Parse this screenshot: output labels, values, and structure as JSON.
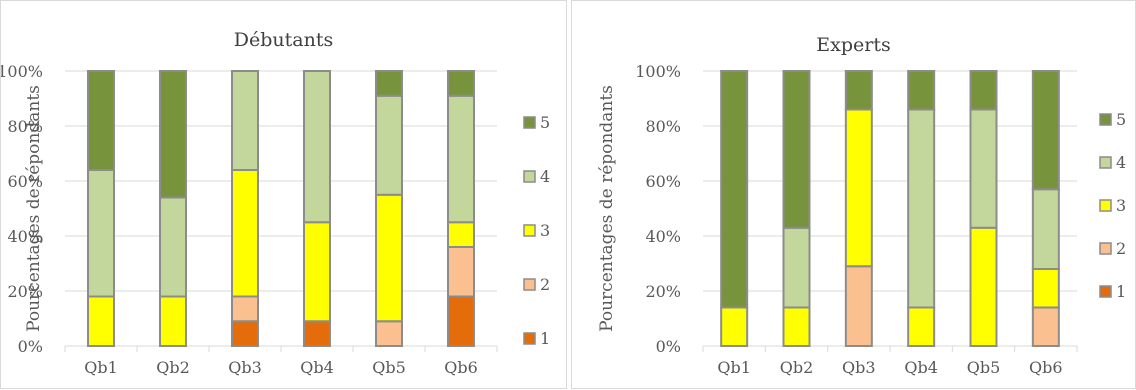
{
  "chart_data": [
    {
      "type": "bar",
      "stacked": true,
      "title": "Débutants",
      "ylabel": "Pourcentages de répondants",
      "xlabel": "",
      "ylim": [
        0,
        100
      ],
      "yticks": [
        "0%",
        "20%",
        "40%",
        "60%",
        "80%",
        "100%"
      ],
      "grid": true,
      "legend_position": "right",
      "categories": [
        "Qb1",
        "Qb2",
        "Qb3",
        "Qb4",
        "Qb5",
        "Qb6"
      ],
      "series": [
        {
          "name": "1",
          "color": "#e46c0a",
          "values": [
            0,
            0,
            9,
            9,
            0,
            18
          ]
        },
        {
          "name": "2",
          "color": "#fac090",
          "values": [
            0,
            0,
            9,
            0,
            9,
            18
          ]
        },
        {
          "name": "3",
          "color": "#ffff00",
          "values": [
            18,
            18,
            46,
            36,
            46,
            9
          ]
        },
        {
          "name": "4",
          "color": "#c3d69b",
          "values": [
            46,
            36,
            36,
            55,
            36,
            46
          ]
        },
        {
          "name": "5",
          "color": "#77933c",
          "values": [
            36,
            46,
            0,
            0,
            9,
            9
          ]
        }
      ]
    },
    {
      "type": "bar",
      "stacked": true,
      "title": "Experts",
      "ylabel": "Pourcentages de répondants",
      "xlabel": "",
      "ylim": [
        0,
        100
      ],
      "yticks": [
        "0%",
        "20%",
        "40%",
        "60%",
        "80%",
        "100%"
      ],
      "grid": true,
      "legend_position": "right",
      "categories": [
        "Qb1",
        "Qb2",
        "Qb3",
        "Qb4",
        "Qb5",
        "Qb6"
      ],
      "series": [
        {
          "name": "1",
          "color": "#e46c0a",
          "values": [
            0,
            0,
            0,
            0,
            0,
            0
          ]
        },
        {
          "name": "2",
          "color": "#fac090",
          "values": [
            0,
            0,
            29,
            0,
            0,
            14
          ]
        },
        {
          "name": "3",
          "color": "#ffff00",
          "values": [
            14,
            14,
            57,
            14,
            43,
            14
          ]
        },
        {
          "name": "4",
          "color": "#c3d69b",
          "values": [
            0,
            29,
            0,
            72,
            43,
            29
          ]
        },
        {
          "name": "5",
          "color": "#77933c",
          "values": [
            86,
            57,
            14,
            14,
            14,
            43
          ]
        }
      ]
    }
  ]
}
